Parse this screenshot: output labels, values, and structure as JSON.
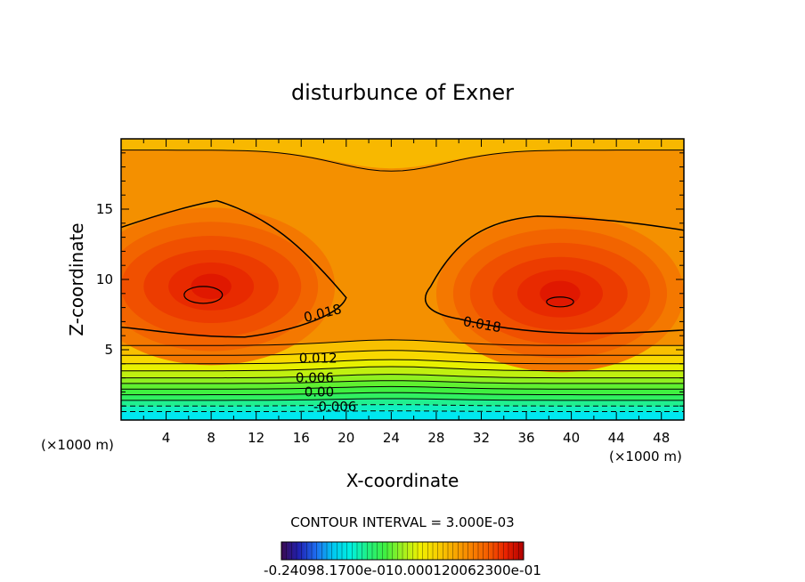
{
  "chart_data": {
    "type": "heatmap",
    "title": "disturbunce of Exner",
    "xlabel": "X-coordinate",
    "ylabel": "Z-coordinate",
    "x_unit_left": "(×1000 m)",
    "x_unit_right": "(×1000 m)",
    "xlim": [
      0,
      50
    ],
    "ylim": [
      0,
      20
    ],
    "x_ticks": [
      4,
      8,
      12,
      16,
      20,
      24,
      28,
      32,
      36,
      40,
      44,
      48
    ],
    "y_ticks": [
      5,
      10,
      15
    ],
    "contour_interval_text": "CONTOUR INTERVAL = 3.000E-03",
    "contour_labels": [
      {
        "text": "0.018",
        "x": 18,
        "z": 7.6
      },
      {
        "text": "0.018",
        "x": 32,
        "z": 6.8
      },
      {
        "text": "0.012",
        "x": 17.5,
        "z": 4.4
      },
      {
        "text": "0.006",
        "x": 17.2,
        "z": 3.0
      },
      {
        "text": "0.00",
        "x": 17.6,
        "z": 2.0
      },
      {
        "text": "-0.006",
        "x": 19,
        "z": 0.95
      }
    ],
    "colorbar_label_text": "-0.24098.1700e-010.000120062300e-01",
    "colorbar_range": [
      -0.024,
      0.024
    ],
    "grid": false,
    "colormap": [
      "#3b0a4f",
      "#2020b0",
      "#1e6ef0",
      "#00c8f0",
      "#00f0e0",
      "#20f080",
      "#40f040",
      "#a0f020",
      "#f0f000",
      "#f8d000",
      "#f8a800",
      "#f88000",
      "#f45a00",
      "#e82000",
      "#b00000"
    ]
  }
}
